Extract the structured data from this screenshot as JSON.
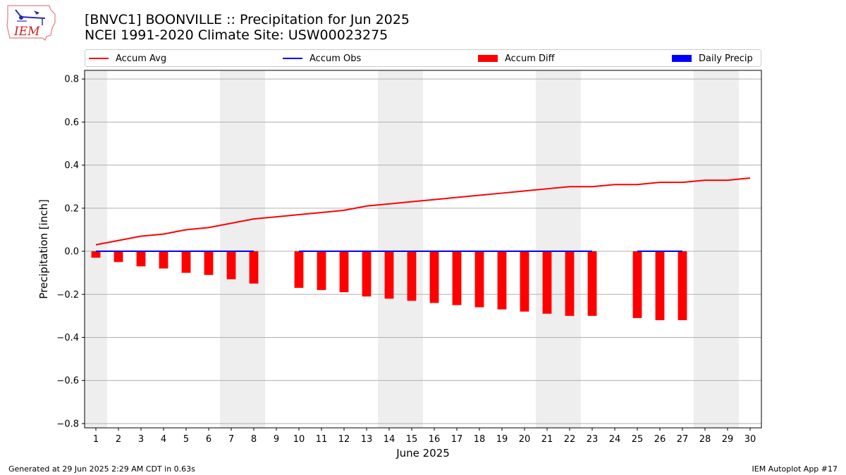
{
  "header": {
    "title_line1": "[BNVC1] BOONVILLE :: Precipitation for Jun 2025",
    "title_line2": "NCEI 1991-2020 Climate Site: USW00023275",
    "logo_text": "IEM"
  },
  "footer": {
    "left": "Generated at 29 Jun 2025 2:29 AM CDT in 0.63s",
    "right": "IEM Autoplot App #17"
  },
  "colors": {
    "accum_avg": "#ff0000",
    "accum_obs": "#0000ff",
    "accum_diff": "#ff0000",
    "daily_precip": "#0000ff",
    "weekend_shade": "#eeeeee",
    "grid": "#b0b0b0"
  },
  "chart_data": {
    "type": "bar",
    "xlabel": "June 2025",
    "ylabel": "Precipitation [inch]",
    "xlim": [
      0.5,
      30.5
    ],
    "ylim": [
      -0.82,
      0.84
    ],
    "yticks": [
      -0.8,
      -0.6,
      -0.4,
      -0.2,
      0.0,
      0.2,
      0.4,
      0.6,
      0.8
    ],
    "ytick_labels": [
      "−0.8",
      "−0.6",
      "−0.4",
      "−0.2",
      "0.0",
      "0.2",
      "0.4",
      "0.6",
      "0.8"
    ],
    "days": [
      1,
      2,
      3,
      4,
      5,
      6,
      7,
      8,
      9,
      10,
      11,
      12,
      13,
      14,
      15,
      16,
      17,
      18,
      19,
      20,
      21,
      22,
      23,
      24,
      25,
      26,
      27,
      28,
      29,
      30
    ],
    "grid": true,
    "legend_position": "top",
    "weekend_shading": [
      [
        1,
        1
      ],
      [
        7,
        8
      ],
      [
        14,
        15
      ],
      [
        21,
        22
      ],
      [
        28,
        29
      ]
    ],
    "legend": [
      "Accum Avg",
      "Accum Obs",
      "Accum Diff",
      "Daily Precip"
    ],
    "series": [
      {
        "name": "Accum Avg",
        "kind": "line",
        "x": [
          1,
          2,
          3,
          4,
          5,
          6,
          7,
          8,
          9,
          10,
          11,
          12,
          13,
          14,
          15,
          16,
          17,
          18,
          19,
          20,
          21,
          22,
          23,
          24,
          25,
          26,
          27,
          28,
          29,
          30
        ],
        "values": [
          0.03,
          0.05,
          0.07,
          0.08,
          0.1,
          0.11,
          0.13,
          0.15,
          0.16,
          0.17,
          0.18,
          0.19,
          0.21,
          0.22,
          0.23,
          0.24,
          0.25,
          0.26,
          0.27,
          0.28,
          0.29,
          0.3,
          0.3,
          0.31,
          0.31,
          0.32,
          0.32,
          0.33,
          0.33,
          0.34
        ]
      },
      {
        "name": "Accum Obs",
        "kind": "line",
        "segments": [
          {
            "x": [
              1,
              2,
              3,
              4,
              5,
              6,
              7,
              8
            ],
            "values": [
              0,
              0,
              0,
              0,
              0,
              0,
              0,
              0
            ]
          },
          {
            "x": [
              10,
              11,
              12,
              13,
              14,
              15,
              16,
              17,
              18,
              19,
              20,
              21,
              22,
              23
            ],
            "values": [
              0,
              0,
              0,
              0,
              0,
              0,
              0,
              0,
              0,
              0,
              0,
              0,
              0,
              0
            ]
          },
          {
            "x": [
              25,
              26,
              27
            ],
            "values": [
              0,
              0,
              0
            ]
          }
        ]
      },
      {
        "name": "Accum Diff",
        "kind": "bar",
        "x": [
          1,
          2,
          3,
          4,
          5,
          6,
          7,
          8,
          10,
          11,
          12,
          13,
          14,
          15,
          16,
          17,
          18,
          19,
          20,
          21,
          22,
          23,
          25,
          26,
          27
        ],
        "values": [
          -0.03,
          -0.05,
          -0.07,
          -0.08,
          -0.1,
          -0.11,
          -0.13,
          -0.15,
          -0.17,
          -0.18,
          -0.19,
          -0.21,
          -0.22,
          -0.23,
          -0.24,
          -0.25,
          -0.26,
          -0.27,
          -0.28,
          -0.29,
          -0.3,
          -0.3,
          -0.31,
          -0.32,
          -0.32
        ]
      },
      {
        "name": "Daily Precip",
        "kind": "bar",
        "x": [
          1,
          2,
          3,
          4,
          5,
          6,
          7,
          8,
          10,
          11,
          12,
          13,
          14,
          15,
          16,
          17,
          18,
          19,
          20,
          21,
          22,
          23,
          25,
          26,
          27
        ],
        "values": [
          0,
          0,
          0,
          0,
          0,
          0,
          0,
          0,
          0,
          0,
          0,
          0,
          0,
          0,
          0,
          0,
          0,
          0,
          0,
          0,
          0,
          0,
          0,
          0,
          0
        ]
      }
    ]
  }
}
